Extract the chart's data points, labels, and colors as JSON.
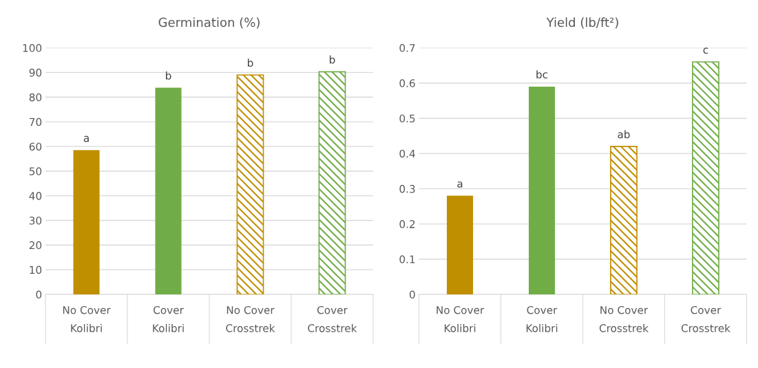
{
  "chart_data": [
    {
      "type": "bar",
      "title": "Germination (%)",
      "categories": [
        "No Cover\nKolibri",
        "Cover\nKolibri",
        "No Cover\nCrosstrek",
        "Cover\nCrosstrek"
      ],
      "values": [
        58.5,
        83.8,
        89,
        90.3
      ],
      "colors": [
        "#bf8f00",
        "#70ad47",
        "#bf8f00",
        "#70ad47"
      ],
      "ylim": [
        0,
        100
      ],
      "yticks": [
        0,
        10,
        20,
        30,
        40,
        50,
        60,
        70,
        80,
        90,
        100
      ],
      "grid": "y",
      "legend": false,
      "annotations": [
        {
          "text": "a",
          "x": "No Cover\nKolibri",
          "y": 58.5
        },
        {
          "text": "b",
          "x": "Cover\nKolibri",
          "y": 83.8
        },
        {
          "text": "b",
          "x": "No Cover\nCrosstrek",
          "y": 89
        },
        {
          "text": "b",
          "x": "Cover\nCrosstrek",
          "y": 90.3
        }
      ]
    },
    {
      "type": "bar",
      "title": "Yield (lb/ft²)",
      "categories": [
        "No Cover\nKolibri",
        "Cover\nKolibri",
        "No Cover\nCrosstrek",
        "Cover\nCrosstrek"
      ],
      "values": [
        0.28,
        0.59,
        0.42,
        0.66
      ],
      "colors": [
        "#bf8f00",
        "#70ad47",
        "#bf8f00",
        "#70ad47"
      ],
      "ylim": [
        0,
        0.7
      ],
      "yticks": [
        0,
        0.1,
        0.2,
        0.3,
        0.4,
        0.5,
        0.6,
        0.7
      ],
      "grid": "y",
      "legend": false,
      "annotations": [
        {
          "text": "a",
          "x": "No Cover\nKolibri",
          "y": 0.28
        },
        {
          "text": "bc",
          "x": "Cover\nKolibri",
          "y": 0.59
        },
        {
          "text": "ab",
          "x": "No Cover\nCrosstrek",
          "y": 0.42
        },
        {
          "text": "c",
          "x": "Cover\nCrosstrek",
          "y": 0.66
        }
      ]
    }
  ]
}
